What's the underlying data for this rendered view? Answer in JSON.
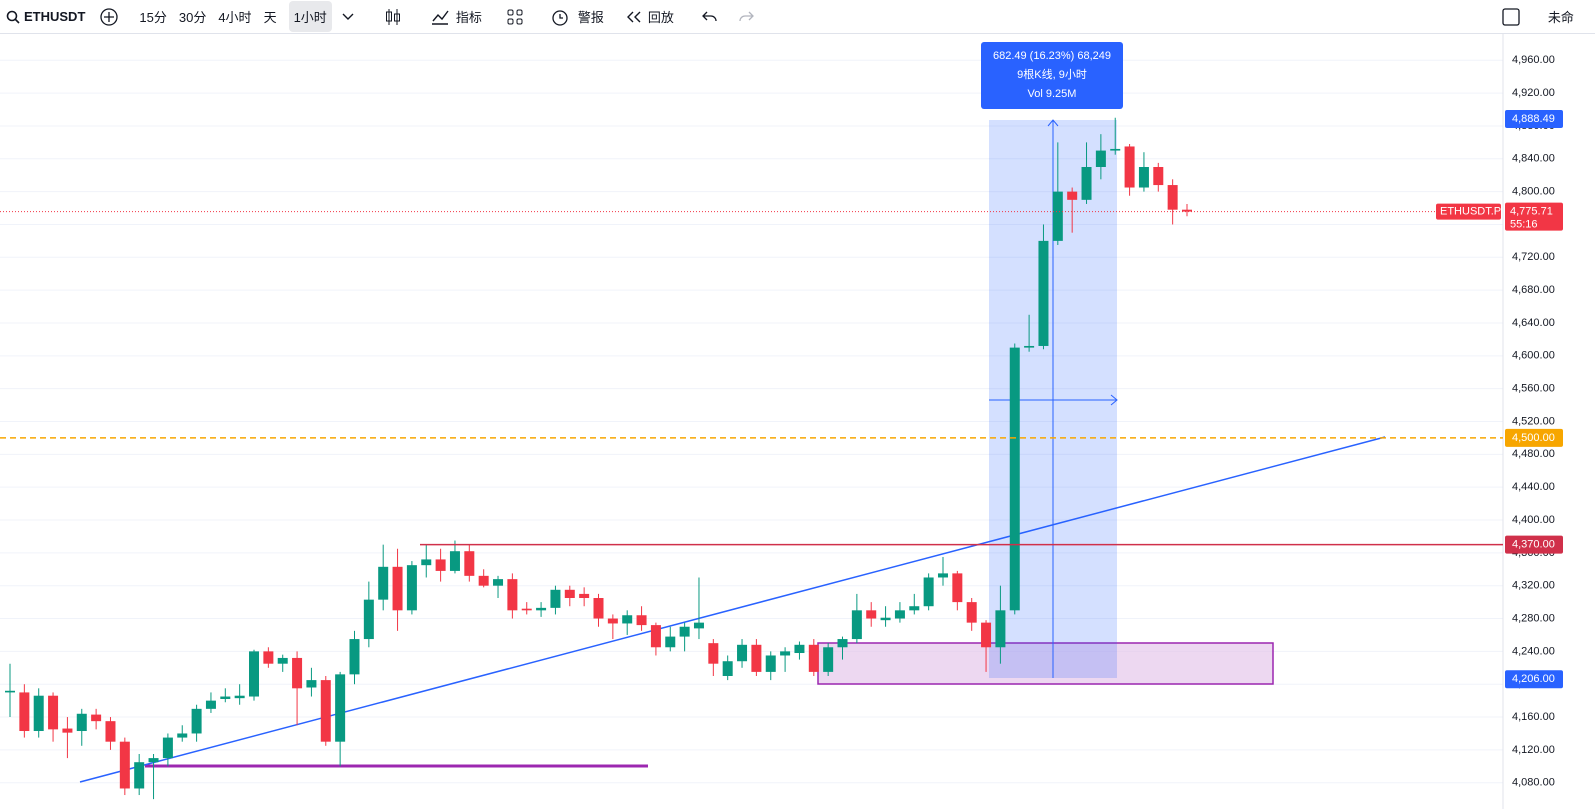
{
  "toolbar": {
    "symbol": "ETHUSDT",
    "intervals": [
      "15分",
      "30分",
      "4小时",
      "天",
      "1小时"
    ],
    "indicators": "指标",
    "alerts": "警报",
    "replay": "回放",
    "unnamed": "未命"
  },
  "chart_data": {
    "type": "candlestick",
    "open": [
      4190,
      4190,
      4143,
      4186,
      4146,
      4143,
      4163,
      4155,
      4130,
      4073,
      4105,
      4110,
      4135,
      4140,
      4170,
      4182,
      4183,
      4185,
      4240,
      4225,
      4232,
      4196,
      4205,
      4130,
      4212,
      4255,
      4303,
      4343,
      4290,
      4345,
      4352,
      4338,
      4362,
      4332,
      4320,
      4328,
      4292,
      4290,
      4293,
      4315,
      4310,
      4305,
      4280,
      4274,
      4284,
      4272,
      4245,
      4258,
      4268,
      4250,
      4210,
      4228,
      4248,
      4215,
      4235,
      4238,
      4248,
      4215,
      4245,
      4255,
      4290,
      4278,
      4280,
      4290,
      4295,
      4330,
      4335,
      4300,
      4275,
      4245,
      4290,
      4610,
      4612,
      4740,
      4800,
      4790,
      4830,
      4850,
      4855,
      4805,
      4830,
      4808,
      4778
    ],
    "high": [
      4225,
      4200,
      4195,
      4190,
      4160,
      4170,
      4170,
      4160,
      4135,
      4115,
      4115,
      4140,
      4150,
      4175,
      4190,
      4195,
      4200,
      4242,
      4245,
      4236,
      4240,
      4220,
      4210,
      4215,
      4265,
      4325,
      4370,
      4365,
      4350,
      4370,
      4365,
      4375,
      4370,
      4340,
      4332,
      4335,
      4300,
      4300,
      4320,
      4320,
      4318,
      4310,
      4285,
      4290,
      4295,
      4275,
      4270,
      4275,
      4330,
      4255,
      4235,
      4255,
      4255,
      4240,
      4245,
      4252,
      4255,
      4250,
      4258,
      4310,
      4300,
      4295,
      4300,
      4310,
      4335,
      4355,
      4338,
      4305,
      4278,
      4320,
      4615,
      4650,
      4760,
      4860,
      4805,
      4860,
      4870,
      4890,
      4858,
      4848,
      4835,
      4815,
      4785
    ],
    "low": [
      4160,
      4135,
      4135,
      4130,
      4110,
      4125,
      4145,
      4120,
      4065,
      4065,
      4060,
      4100,
      4130,
      4130,
      4165,
      4178,
      4175,
      4180,
      4220,
      4215,
      4150,
      4185,
      4125,
      4100,
      4200,
      4245,
      4290,
      4265,
      4285,
      4330,
      4325,
      4335,
      4325,
      4318,
      4305,
      4280,
      4285,
      4282,
      4285,
      4295,
      4295,
      4270,
      4255,
      4260,
      4265,
      4235,
      4240,
      4240,
      4255,
      4210,
      4205,
      4220,
      4210,
      4205,
      4215,
      4230,
      4210,
      4210,
      4230,
      4250,
      4270,
      4270,
      4275,
      4285,
      4290,
      4320,
      4290,
      4265,
      4215,
      4225,
      4285,
      4605,
      4608,
      4735,
      4750,
      4785,
      4815,
      4845,
      4795,
      4800,
      4800,
      4760,
      4770
    ],
    "close": [
      4192,
      4143,
      4186,
      4145,
      4141,
      4164,
      4155,
      4130,
      4073,
      4105,
      4110,
      4135,
      4140,
      4170,
      4180,
      4185,
      4186,
      4240,
      4225,
      4232,
      4195,
      4205,
      4130,
      4212,
      4255,
      4303,
      4343,
      4290,
      4345,
      4352,
      4338,
      4362,
      4332,
      4320,
      4328,
      4290,
      4290,
      4293,
      4315,
      4305,
      4305,
      4280,
      4274,
      4284,
      4272,
      4245,
      4258,
      4270,
      4275,
      4225,
      4228,
      4248,
      4215,
      4235,
      4240,
      4248,
      4215,
      4245,
      4255,
      4290,
      4280,
      4281,
      4290,
      4295,
      4330,
      4335,
      4300,
      4275,
      4245,
      4290,
      4610,
      4612,
      4740,
      4800,
      4790,
      4830,
      4850,
      4852,
      4805,
      4830,
      4808,
      4778,
      4775.71
    ],
    "up_color": "#089981",
    "down_color": "#f23645",
    "ylim": [
      4048,
      4992
    ],
    "yticks": [
      {
        "value": 4080,
        "label": "4,080.00"
      },
      {
        "value": 4120,
        "label": "4,120.00"
      },
      {
        "value": 4160,
        "label": "4,160.00"
      },
      {
        "value": 4200,
        "label": "4,200.00"
      },
      {
        "value": 4240,
        "label": "4,240.00"
      },
      {
        "value": 4280,
        "label": "4,280.00"
      },
      {
        "value": 4320,
        "label": "4,320.00"
      },
      {
        "value": 4360,
        "label": "4,360.00"
      },
      {
        "value": 4400,
        "label": "4,400.00"
      },
      {
        "value": 4440,
        "label": "4,440.00"
      },
      {
        "value": 4480,
        "label": "4,480.00"
      },
      {
        "value": 4520,
        "label": "4,520.00"
      },
      {
        "value": 4560,
        "label": "4,560.00"
      },
      {
        "value": 4600,
        "label": "4,600.00"
      },
      {
        "value": 4640,
        "label": "4,640.00"
      },
      {
        "value": 4680,
        "label": "4,680.00"
      },
      {
        "value": 4720,
        "label": "4,720.00"
      },
      {
        "value": 4760,
        "label": "4,760.00"
      },
      {
        "value": 4800,
        "label": "4,800.00"
      },
      {
        "value": 4840,
        "label": "4,840.00"
      },
      {
        "value": 4880,
        "label": "4,880.00"
      },
      {
        "value": 4920,
        "label": "4,920.00"
      },
      {
        "value": 4960,
        "label": "4,960.00"
      }
    ],
    "grid": true,
    "price_tags": [
      {
        "value": 4888.49,
        "label": "4,888.49",
        "color": "#2962ff"
      },
      {
        "value": 4500,
        "label": "4,500.00",
        "color": "#f7a600"
      },
      {
        "value": 4370,
        "label": "4,370.00",
        "color": "#d0304a"
      },
      {
        "value": 4206,
        "label": "4,206.00",
        "color": "#2962ff"
      }
    ],
    "last_price": {
      "value": 4775.71,
      "label": "4,775.71",
      "countdown": "55:16",
      "symbol": "ETHUSDT.P",
      "color": "#f23645"
    },
    "measure": {
      "change": "682.49 (16.23%) 68,249",
      "bars": "9根K线, 9小时",
      "volume": "Vol 9.25M"
    }
  }
}
